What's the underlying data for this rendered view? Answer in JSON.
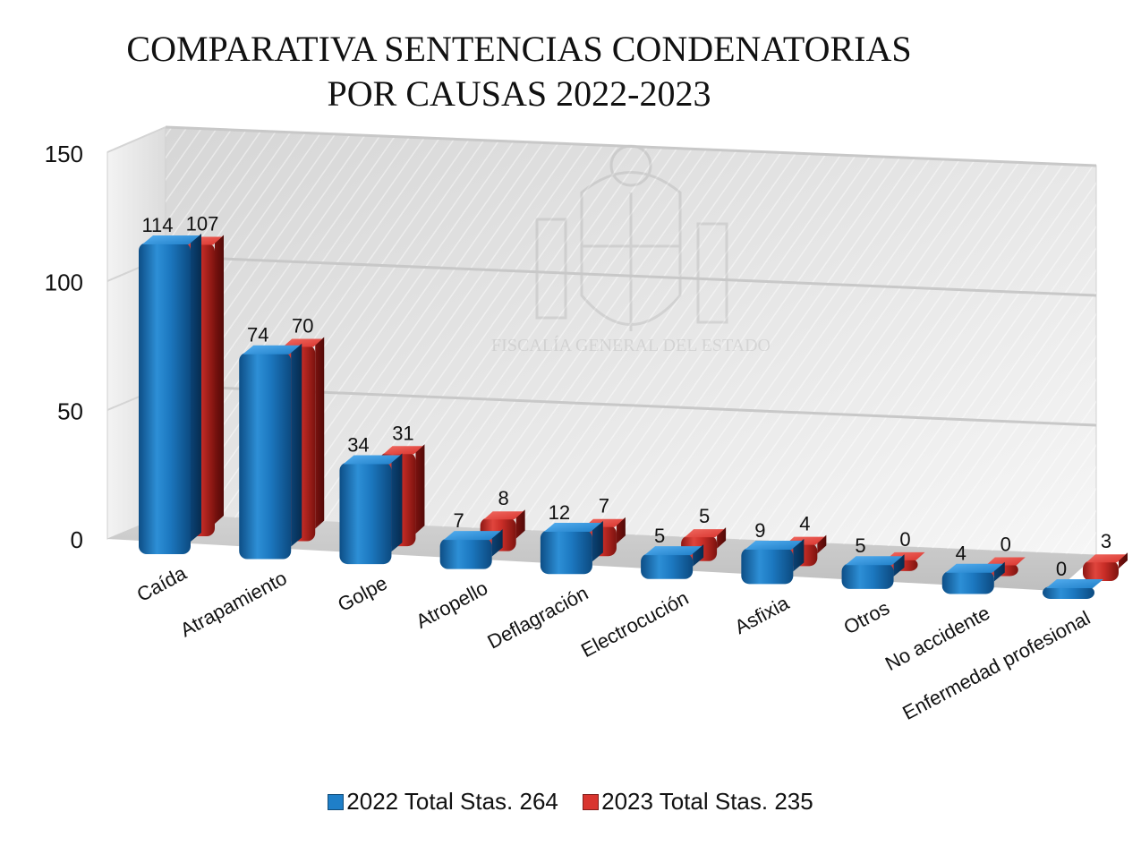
{
  "chart_data": {
    "type": "bar",
    "title_lines": [
      "COMPARATIVA SENTENCIAS CONDENATORIAS",
      "POR CAUSAS 2022-2023"
    ],
    "categories": [
      "Caída",
      "Atrapamiento",
      "Golpe",
      "Atropello",
      "Deflagración",
      "Electrocución",
      "Asfixia",
      "Otros",
      "No accidente",
      "Enfermedad profesional"
    ],
    "series": [
      {
        "name": "2022 Total Stas. 264",
        "values": [
          114,
          74,
          34,
          7,
          12,
          5,
          9,
          5,
          4,
          0
        ],
        "color": "#1f7fc8"
      },
      {
        "name": "2023 Total Stas. 235",
        "values": [
          107,
          70,
          31,
          8,
          7,
          5,
          4,
          0,
          0,
          3
        ],
        "color": "#d9352f"
      }
    ],
    "yticks": [
      0,
      50,
      100,
      150
    ],
    "ylim": [
      0,
      150
    ],
    "grid": true,
    "legend_position": "bottom",
    "watermark": "FISCALÍA GENERAL DEL ESTADO"
  }
}
